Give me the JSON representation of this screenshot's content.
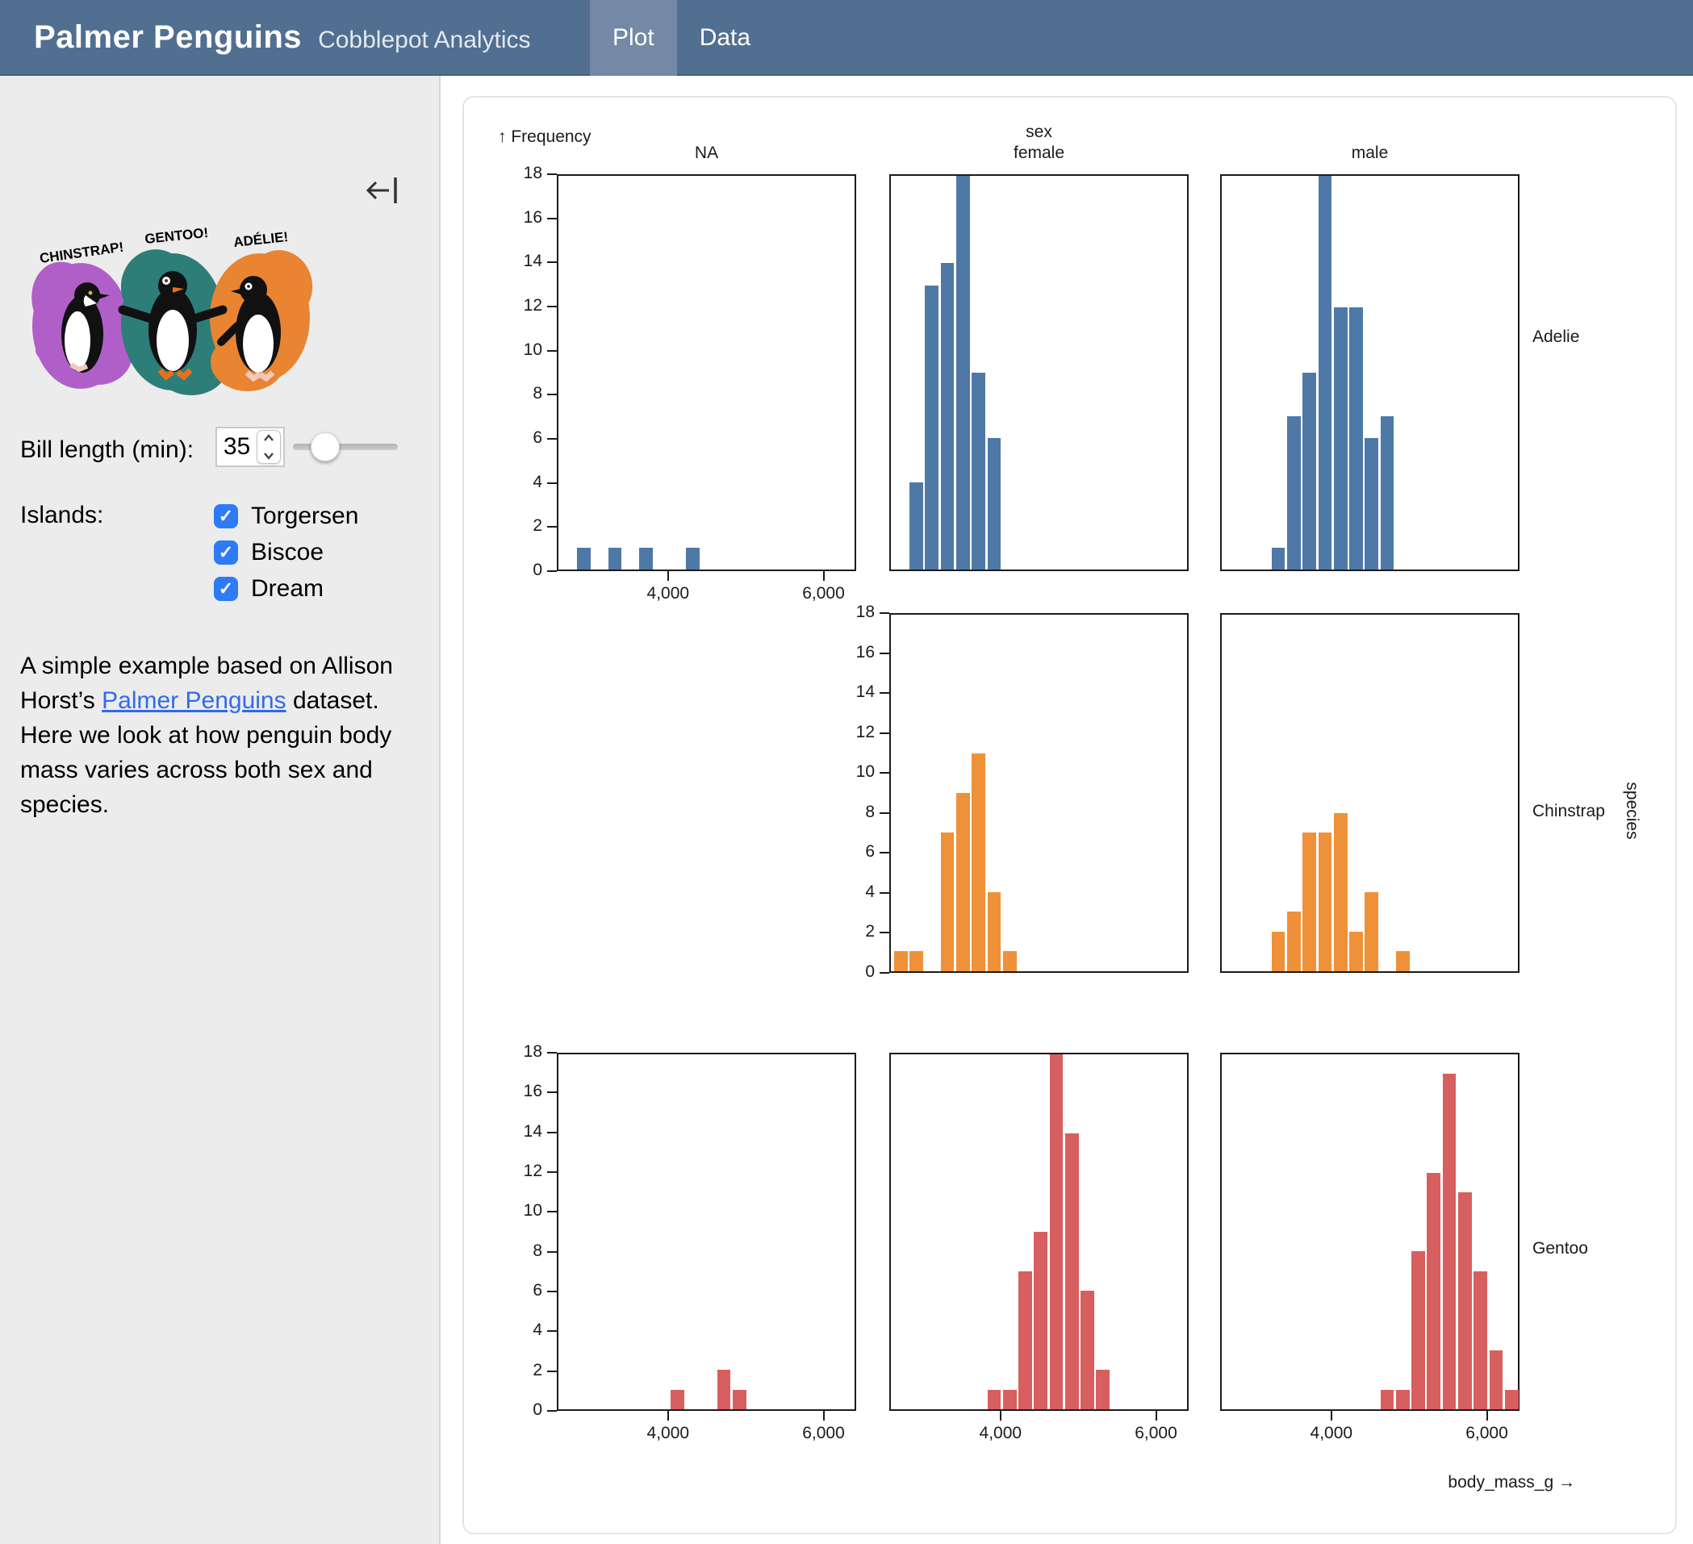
{
  "header": {
    "title": "Palmer Penguins",
    "subtitle": "Cobblepot Analytics",
    "tabs": [
      {
        "label": "Plot",
        "active": true
      },
      {
        "label": "Data",
        "active": false
      }
    ],
    "bg_color": "#516f90",
    "active_tab_color": "#7389a5"
  },
  "sidebar": {
    "artwork": {
      "labels": [
        "CHINSTRAP!",
        "GENTOO!",
        "ADÉLIE!"
      ],
      "splash_colors": [
        "#b05fc9",
        "#2d7d78",
        "#e98432"
      ]
    },
    "bill_length": {
      "label": "Bill length (min):",
      "value": "35"
    },
    "islands": {
      "label": "Islands:",
      "options": [
        {
          "label": "Torgersen",
          "checked": true
        },
        {
          "label": "Biscoe",
          "checked": true
        },
        {
          "label": "Dream",
          "checked": true
        }
      ]
    },
    "description": {
      "text_before_link": "A simple example based on Allison Horst’s ",
      "link_text": "Palmer Penguins",
      "text_after_link": " dataset. Here we look at how penguin body mass varies across both sex and species."
    }
  },
  "chart_data": {
    "type": "bar",
    "note": "faceted histograms of body_mass_g; rows = species, columns = sex; bin width 200 g; y axis 0-18 (tall bars clipped at 18)",
    "y_axis_label": "↑ Frequency",
    "x_axis_label": "body_mass_g →",
    "col_group_label": "sex",
    "row_group_label": "species",
    "columns": [
      "NA",
      "female",
      "male"
    ],
    "rows": [
      "Adelie",
      "Chinstrap",
      "Gentoo"
    ],
    "colors": {
      "Adelie": "#4e79a7",
      "Chinstrap": "#ef9139",
      "Gentoo": "#d85f5f"
    },
    "xlim": [
      2570,
      6420
    ],
    "ylim": [
      0,
      18
    ],
    "bin_width": 200,
    "y_ticks": [
      0,
      2,
      4,
      6,
      8,
      10,
      12,
      14,
      16,
      18
    ],
    "x_ticks": [
      {
        "value": 4000,
        "label": "4,000"
      },
      {
        "value": 6000,
        "label": "6,000"
      }
    ],
    "panels": [
      {
        "row": "Adelie",
        "col": "NA",
        "show_y_axis": true,
        "show_x_axis": true,
        "bins": [
          {
            "x0": 2800,
            "count": 1
          },
          {
            "x0": 3200,
            "count": 1
          },
          {
            "x0": 3600,
            "count": 1
          },
          {
            "x0": 4200,
            "count": 1
          }
        ]
      },
      {
        "row": "Adelie",
        "col": "female",
        "show_y_axis": false,
        "show_x_axis": false,
        "bins": [
          {
            "x0": 2800,
            "count": 4
          },
          {
            "x0": 3000,
            "count": 13
          },
          {
            "x0": 3200,
            "count": 14
          },
          {
            "x0": 3400,
            "count": 18
          },
          {
            "x0": 3600,
            "count": 9
          },
          {
            "x0": 3800,
            "count": 6
          }
        ]
      },
      {
        "row": "Adelie",
        "col": "male",
        "show_y_axis": false,
        "show_x_axis": false,
        "bins": [
          {
            "x0": 3200,
            "count": 1
          },
          {
            "x0": 3400,
            "count": 7
          },
          {
            "x0": 3600,
            "count": 9
          },
          {
            "x0": 3800,
            "count": 18
          },
          {
            "x0": 4000,
            "count": 12
          },
          {
            "x0": 4200,
            "count": 12
          },
          {
            "x0": 4400,
            "count": 6
          },
          {
            "x0": 4600,
            "count": 7
          }
        ]
      },
      {
        "row": "Chinstrap",
        "col": "female",
        "show_y_axis": true,
        "show_x_axis": false,
        "bins": [
          {
            "x0": 2600,
            "count": 1
          },
          {
            "x0": 2800,
            "count": 1
          },
          {
            "x0": 3200,
            "count": 7
          },
          {
            "x0": 3400,
            "count": 9
          },
          {
            "x0": 3600,
            "count": 11
          },
          {
            "x0": 3800,
            "count": 4
          },
          {
            "x0": 4000,
            "count": 1
          }
        ]
      },
      {
        "row": "Chinstrap",
        "col": "male",
        "show_y_axis": false,
        "show_x_axis": false,
        "bins": [
          {
            "x0": 3200,
            "count": 2
          },
          {
            "x0": 3400,
            "count": 3
          },
          {
            "x0": 3600,
            "count": 7
          },
          {
            "x0": 3800,
            "count": 7
          },
          {
            "x0": 4000,
            "count": 8
          },
          {
            "x0": 4200,
            "count": 2
          },
          {
            "x0": 4400,
            "count": 4
          },
          {
            "x0": 4800,
            "count": 1
          }
        ]
      },
      {
        "row": "Gentoo",
        "col": "NA",
        "show_y_axis": true,
        "show_x_axis": true,
        "bins": [
          {
            "x0": 4000,
            "count": 1
          },
          {
            "x0": 4600,
            "count": 2
          },
          {
            "x0": 4800,
            "count": 1
          }
        ]
      },
      {
        "row": "Gentoo",
        "col": "female",
        "show_y_axis": false,
        "show_x_axis": true,
        "bins": [
          {
            "x0": 3800,
            "count": 1
          },
          {
            "x0": 4000,
            "count": 1
          },
          {
            "x0": 4200,
            "count": 7
          },
          {
            "x0": 4400,
            "count": 9
          },
          {
            "x0": 4600,
            "count": 18
          },
          {
            "x0": 4800,
            "count": 14
          },
          {
            "x0": 5000,
            "count": 6
          },
          {
            "x0": 5200,
            "count": 2
          }
        ]
      },
      {
        "row": "Gentoo",
        "col": "male",
        "show_y_axis": false,
        "show_x_axis": true,
        "bins": [
          {
            "x0": 4600,
            "count": 1
          },
          {
            "x0": 4800,
            "count": 1
          },
          {
            "x0": 5000,
            "count": 8
          },
          {
            "x0": 5200,
            "count": 12
          },
          {
            "x0": 5400,
            "count": 17
          },
          {
            "x0": 5600,
            "count": 11
          },
          {
            "x0": 5800,
            "count": 7
          },
          {
            "x0": 6000,
            "count": 3
          },
          {
            "x0": 6200,
            "count": 1
          }
        ]
      }
    ]
  }
}
